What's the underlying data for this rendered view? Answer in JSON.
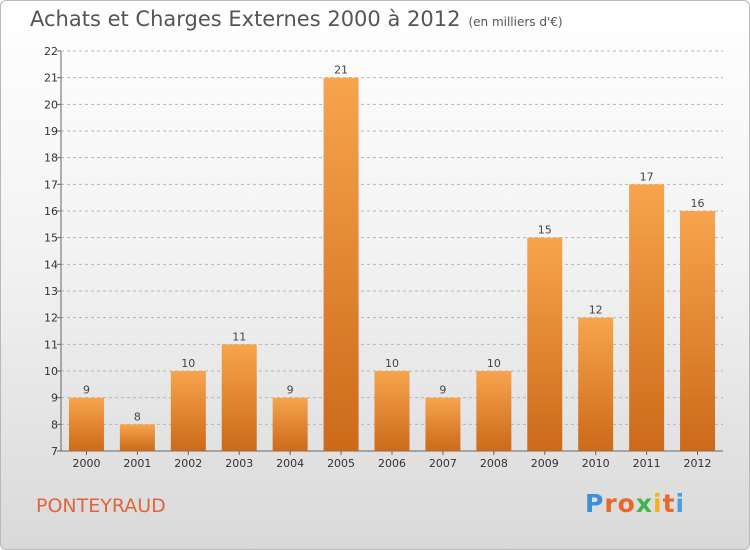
{
  "header": {
    "title": "Achats et Charges Externes 2000 à 2012",
    "unit": "(en milliers d'€)"
  },
  "footer": {
    "town": "PONTEYRAUD",
    "logo_letters": [
      "P",
      "r",
      "o",
      "x",
      "i",
      "t",
      "i"
    ],
    "logo_colors": [
      "#3c8ed6",
      "#e8672a",
      "#e8672a",
      "#45b34a",
      "#f2b21f",
      "#e8672a",
      "#4aa0dc"
    ]
  },
  "colors": {
    "bar_light": "#f7a44e",
    "bar_dark": "#cc6a1a",
    "gridline": "#b5b5b5",
    "axis": "#666666"
  },
  "chart_data": {
    "type": "bar",
    "title": "Achats et Charges Externes 2000 à 2012",
    "subtitle": "(en milliers d'€)",
    "categories": [
      "2000",
      "2001",
      "2002",
      "2003",
      "2004",
      "2005",
      "2006",
      "2007",
      "2008",
      "2009",
      "2010",
      "2011",
      "2012"
    ],
    "values": [
      9,
      8,
      10,
      11,
      9,
      21,
      10,
      9,
      10,
      15,
      12,
      17,
      16
    ],
    "data_labels": [
      "9",
      "8",
      "10",
      "11",
      "9",
      "21",
      "10",
      "9",
      "10",
      "15",
      "12",
      "17",
      "16"
    ],
    "ylim": [
      7,
      22
    ],
    "yticks": [
      7,
      8,
      9,
      10,
      11,
      12,
      13,
      14,
      15,
      16,
      17,
      18,
      19,
      20,
      21,
      22
    ],
    "grid": true,
    "legend": "none"
  }
}
